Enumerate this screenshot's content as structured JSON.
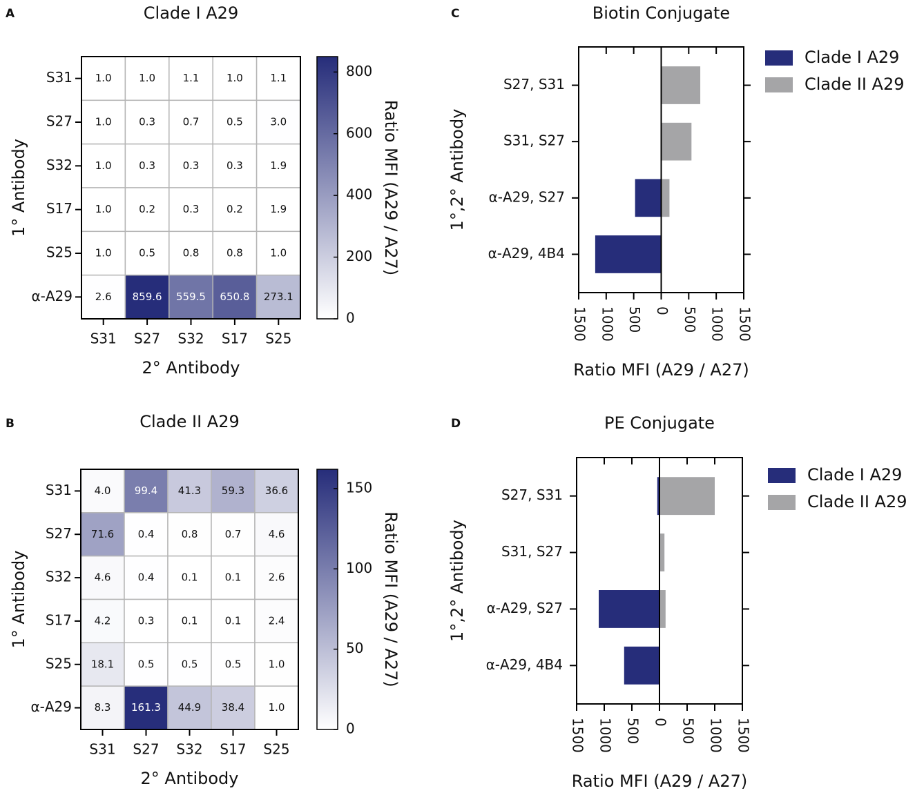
{
  "chart_data": [
    {
      "type": "heatmap",
      "panel_label": "A",
      "title": "Clade I A29",
      "x_label": "2° Antibody",
      "y_label": "1° Antibody",
      "x_categories": [
        "S31",
        "S27",
        "S32",
        "S17",
        "S25"
      ],
      "y_categories": [
        "S31",
        "S27",
        "S32",
        "S17",
        "S25",
        "α-A29"
      ],
      "values": [
        [
          1.0,
          1.0,
          1.1,
          1.0,
          1.1
        ],
        [
          1.0,
          0.3,
          0.7,
          0.5,
          3.0
        ],
        [
          1.0,
          0.3,
          0.3,
          0.3,
          1.9
        ],
        [
          1.0,
          0.2,
          0.3,
          0.2,
          1.9
        ],
        [
          1.0,
          0.5,
          0.8,
          0.8,
          1.0
        ],
        [
          2.6,
          859.6,
          559.5,
          650.8,
          273.1
        ]
      ],
      "value_labels": [
        [
          "1.0",
          "1.0",
          "1.1",
          "1.0",
          "1.1"
        ],
        [
          "1.0",
          "0.3",
          "0.7",
          "0.5",
          "3.0"
        ],
        [
          "1.0",
          "0.3",
          "0.3",
          "0.3",
          "1.9"
        ],
        [
          "1.0",
          "0.2",
          "0.3",
          "0.2",
          "1.9"
        ],
        [
          "1.0",
          "0.5",
          "0.8",
          "0.8",
          "1.0"
        ],
        [
          "2.6",
          "859.6",
          "559.5",
          "650.8",
          "273.1"
        ]
      ],
      "colorbar": {
        "label": "Ratio MFI (A29 / A27)",
        "lim": [
          0,
          850
        ],
        "ticks": [
          0,
          200,
          400,
          600,
          800
        ],
        "colors": [
          "#ffffff",
          "#262d7a"
        ]
      }
    },
    {
      "type": "heatmap",
      "panel_label": "B",
      "title": "Clade II A29",
      "x_label": "2° Antibody",
      "y_label": "1° Antibody",
      "x_categories": [
        "S31",
        "S27",
        "S32",
        "S17",
        "S25"
      ],
      "y_categories": [
        "S31",
        "S27",
        "S32",
        "S17",
        "S25",
        "α-A29"
      ],
      "values": [
        [
          4.0,
          99.4,
          41.3,
          59.3,
          36.6
        ],
        [
          71.6,
          0.4,
          0.8,
          0.7,
          4.6
        ],
        [
          4.6,
          0.4,
          0.1,
          0.1,
          2.6
        ],
        [
          4.2,
          0.3,
          0.1,
          0.1,
          2.4
        ],
        [
          18.1,
          0.5,
          0.5,
          0.5,
          1.0
        ],
        [
          8.3,
          161.3,
          44.9,
          38.4,
          1.0
        ]
      ],
      "value_labels": [
        [
          "4.0",
          "99.4",
          "41.3",
          "59.3",
          "36.6"
        ],
        [
          "71.6",
          "0.4",
          "0.8",
          "0.7",
          "4.6"
        ],
        [
          "4.6",
          "0.4",
          "0.1",
          "0.1",
          "2.6"
        ],
        [
          "4.2",
          "0.3",
          "0.1",
          "0.1",
          "2.4"
        ],
        [
          "18.1",
          "0.5",
          "0.5",
          "0.5",
          "1.0"
        ],
        [
          "8.3",
          "161.3",
          "44.9",
          "38.4",
          "1.0"
        ]
      ],
      "colorbar": {
        "label": "Ratio MFI (A29 / A27)",
        "lim": [
          0,
          162
        ],
        "ticks": [
          0,
          50,
          100,
          150
        ],
        "colors": [
          "#ffffff",
          "#262d7a"
        ]
      }
    },
    {
      "type": "diverging_bar",
      "panel_label": "C",
      "title": "Biotin Conjugate",
      "x_label": "Ratio MFI (A29 / A27)",
      "y_label": "1°,2° Antibody",
      "categories": [
        "S27, S31",
        "S31, S27",
        "α-A29, S27",
        "α-A29, 4B4"
      ],
      "series": [
        {
          "name": "Clade I A29",
          "color": "#262d7a",
          "values": [
            0,
            0,
            -475,
            -1200
          ]
        },
        {
          "name": "Clade II A29",
          "color": "#a5a5a7",
          "values": [
            710,
            550,
            150,
            0
          ]
        }
      ],
      "xlim": [
        -1500,
        1500
      ],
      "xticks": [
        {
          "value": -1500,
          "label": "1500"
        },
        {
          "value": -1000,
          "label": "1000"
        },
        {
          "value": -500,
          "label": "500"
        },
        0,
        500,
        1000,
        1500
      ],
      "legend": "outside right"
    },
    {
      "type": "diverging_bar",
      "panel_label": "D",
      "title": "PE Conjugate",
      "x_label": "Ratio MFI (A29 / A27)",
      "y_label": "1°,2° Antibody",
      "categories": [
        "S27, S31",
        "S31, S27",
        "α-A29, S27",
        "α-A29, 4B4"
      ],
      "series": [
        {
          "name": "Clade I A29",
          "color": "#262d7a",
          "values": [
            -40,
            0,
            -1100,
            -640
          ]
        },
        {
          "name": "Clade II A29",
          "color": "#a5a5a7",
          "values": [
            1000,
            90,
            110,
            0
          ]
        }
      ],
      "xlim": [
        -1500,
        1500
      ],
      "xticks": [
        {
          "value": -1500,
          "label": "1500"
        },
        {
          "value": -1000,
          "label": "1000"
        },
        {
          "value": -500,
          "label": "500"
        },
        0,
        500,
        1000,
        1500
      ],
      "legend": "outside right"
    }
  ]
}
